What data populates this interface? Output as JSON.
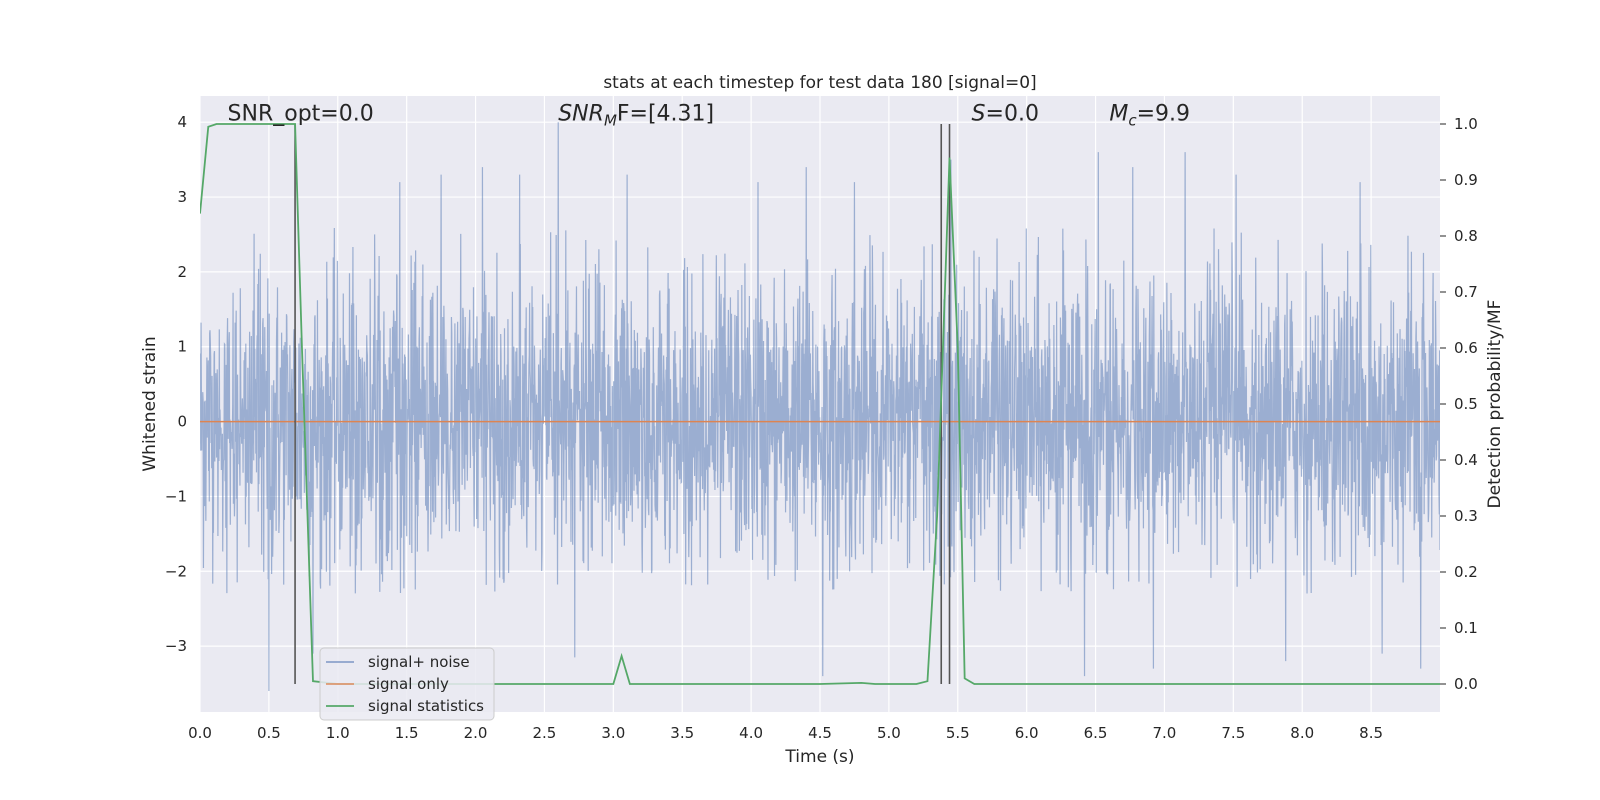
{
  "chart_data": {
    "type": "line",
    "title": "stats at each timestep for test data 180 [signal=0]",
    "xlabel": "Time (s)",
    "ylabel_left": "Whitened strain",
    "ylabel_right": "Detection probability/MF",
    "xlim": [
      0.0,
      9.0
    ],
    "ylim_left": [
      -3.88,
      4.35
    ],
    "ylim_right": [
      -0.05,
      1.05
    ],
    "xticks": [
      0.0,
      0.5,
      1.0,
      1.5,
      2.0,
      2.5,
      3.0,
      3.5,
      4.0,
      4.5,
      5.0,
      5.5,
      6.0,
      6.5,
      7.0,
      7.5,
      8.0,
      8.5
    ],
    "xtick_labels": [
      "0.0",
      "0.5",
      "1.0",
      "1.5",
      "2.0",
      "2.5",
      "3.0",
      "3.5",
      "4.0",
      "4.5",
      "5.0",
      "5.5",
      "6.0",
      "6.5",
      "7.0",
      "7.5",
      "8.0",
      "8.5"
    ],
    "yticks_left": [
      -3,
      -2,
      -1,
      0,
      1,
      2,
      3,
      4
    ],
    "ytick_labels_left": [
      "−3",
      "−2",
      "−1",
      "0",
      "1",
      "2",
      "3",
      "4"
    ],
    "yticks_right": [
      0.0,
      0.1,
      0.2,
      0.3,
      0.4,
      0.5,
      0.6,
      0.7,
      0.8,
      0.9,
      1.0
    ],
    "ytick_labels_right": [
      "0.0",
      "0.1",
      "0.2",
      "0.3",
      "0.4",
      "0.5",
      "0.6",
      "0.7",
      "0.8",
      "0.9",
      "1.0"
    ],
    "grid": true,
    "legend_position": "lower-left",
    "annotations": [
      {
        "text": "SNR_opt=0.0",
        "x": 0.2,
        "y": 4.1
      },
      {
        "text": "SNR",
        "sub": "M",
        "rest": "F=[4.31]",
        "x": 2.6,
        "y": 4.1
      },
      {
        "text": "S",
        "rest": "=0.0",
        "x": 5.6,
        "y": 4.1
      },
      {
        "text": "M",
        "sub": "c",
        "rest": "=9.9",
        "x": 6.6,
        "y": 4.1
      }
    ],
    "vertical_lines": [
      0.69,
      5.38,
      5.44
    ],
    "series": [
      {
        "name": "signal+ noise",
        "color": "#4c72b0",
        "axis": "left",
        "amplitude_envelope": {
          "typical_max": 2.6,
          "typical_min": -2.3,
          "peak_max": 4.0,
          "peak_min": -3.6
        },
        "peaks": [
          [
            0.5,
            -3.6
          ],
          [
            0.82,
            -3.1
          ],
          [
            1.45,
            3.2
          ],
          [
            1.75,
            3.3
          ],
          [
            2.05,
            3.4
          ],
          [
            2.32,
            3.3
          ],
          [
            2.6,
            4.0
          ],
          [
            2.72,
            -3.15
          ],
          [
            3.1,
            3.3
          ],
          [
            4.05,
            3.2
          ],
          [
            4.4,
            3.4
          ],
          [
            4.52,
            -3.4
          ],
          [
            4.75,
            3.2
          ],
          [
            5.45,
            3.5
          ],
          [
            6.42,
            -3.4
          ],
          [
            6.52,
            3.6
          ],
          [
            6.77,
            3.4
          ],
          [
            6.92,
            -3.3
          ],
          [
            7.15,
            3.6
          ],
          [
            7.52,
            3.3
          ],
          [
            7.88,
            -3.2
          ],
          [
            8.42,
            3.2
          ],
          [
            8.58,
            -3.1
          ],
          [
            8.86,
            -3.3
          ]
        ]
      },
      {
        "name": "signal only",
        "color": "#dd8452",
        "axis": "left",
        "x": [
          0.0,
          9.0
        ],
        "y": [
          0.0,
          0.0
        ]
      },
      {
        "name": "signal statistics",
        "color": "#55a868",
        "axis": "right",
        "x": [
          0.0,
          0.06,
          0.12,
          0.69,
          0.74,
          0.82,
          1.0,
          2.0,
          3.0,
          3.06,
          3.12,
          4.0,
          4.5,
          4.8,
          4.9,
          5.2,
          5.28,
          5.35,
          5.44,
          5.5,
          5.55,
          5.62,
          6.0,
          7.0,
          8.0,
          9.0
        ],
        "y": [
          0.84,
          0.995,
          1.0,
          1.0,
          0.6,
          0.005,
          0.0,
          0.0,
          0.0,
          0.05,
          0.0,
          0.0,
          0.0,
          0.002,
          0.0,
          0.0,
          0.005,
          0.3,
          0.94,
          0.6,
          0.01,
          0.0,
          0.0,
          0.0,
          0.0,
          0.0
        ]
      }
    ]
  }
}
